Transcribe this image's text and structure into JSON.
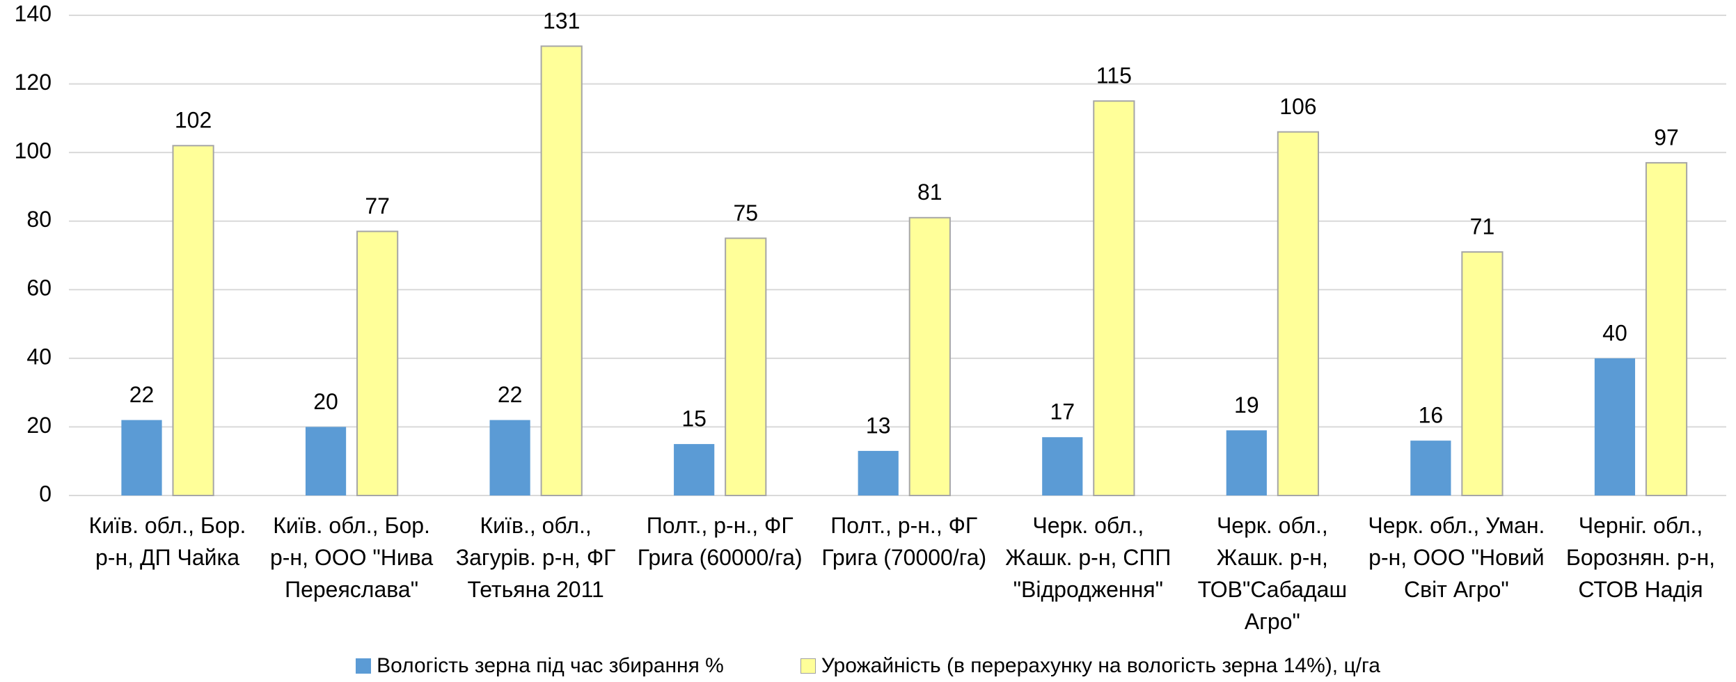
{
  "chart_data": {
    "type": "bar",
    "categories": [
      "Київ. обл., Бор. р-н, ДП Чайка",
      "Київ. обл., Бор. р-н, ООО \"Нива Переяслава\"",
      "Київ., обл., Загурів. р-н, ФГ Тетьяна 2011",
      "Полт., р-н., ФГ Грига (60000/га)",
      "Полт., р-н., ФГ Грига (70000/га)",
      "Черк. обл., Жашк. р-н, СПП \"Відродження\"",
      "Черк. обл., Жашк. р-н, ТОВ\"Сабадаш Агро\"",
      "Черк. обл., Уман. р-н, ООО \"Новий Світ Агро\"",
      "Черніг. обл., Борознян. р-н, СТОВ Надія"
    ],
    "series": [
      {
        "name": "Вологість зерна під час збирання %",
        "color": "#5b9bd5",
        "values": [
          22,
          20,
          22,
          15,
          13,
          17,
          19,
          16,
          40
        ]
      },
      {
        "name": "Урожайність  (в перерахунку на вологість зерна 14%), ц/га",
        "color": "#ffff99",
        "values": [
          102,
          77,
          131,
          75,
          81,
          115,
          106,
          71,
          97
        ]
      }
    ],
    "ylim": [
      0,
      140
    ],
    "yticks": [
      0,
      20,
      40,
      60,
      80,
      100,
      120,
      140
    ],
    "grid": true,
    "legend": "bottom"
  }
}
